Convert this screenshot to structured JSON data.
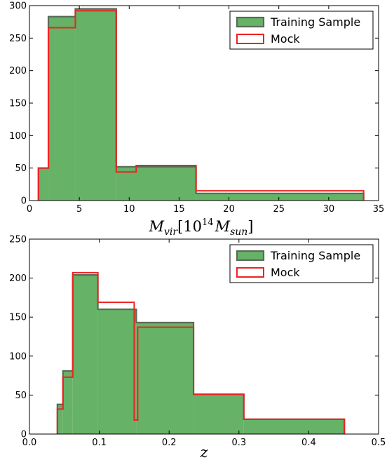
{
  "colors": {
    "training_fill": "#66b266",
    "training_edge": "#5a6a5a",
    "mock_edge": "#ee2222",
    "axes": "#000000"
  },
  "chart_data": [
    {
      "type": "histogram",
      "xlabel_base": "M",
      "xlabel_sub": "vir",
      "xlabel_bracket_open": "[10",
      "xlabel_sup": "14",
      "xlabel_unit": "M",
      "xlabel_unit_sub": "sun",
      "xlabel_bracket_close": "]",
      "xlim": [
        0,
        35
      ],
      "ylim": [
        0,
        300
      ],
      "xticks": [
        0,
        5,
        10,
        15,
        20,
        25,
        30,
        35
      ],
      "yticks": [
        0,
        50,
        100,
        150,
        200,
        250,
        300
      ],
      "legend": {
        "placement": "top-right",
        "entries": [
          "Training Sample",
          "Mock"
        ]
      },
      "series": [
        {
          "name": "Training Sample",
          "style": "filled",
          "edges": [
            0.9,
            1.9,
            4.6,
            8.7,
            16.7,
            33.5
          ],
          "counts": [
            50,
            283,
            295,
            52,
            11
          ]
        },
        {
          "name": "Mock",
          "style": "step",
          "edges": [
            0.9,
            1.9,
            4.6,
            8.7,
            10.7,
            16.7,
            33.5
          ],
          "counts": [
            50,
            266,
            292,
            44,
            54,
            15
          ]
        }
      ]
    },
    {
      "type": "histogram",
      "xlabel": "z",
      "xlim": [
        0.0,
        0.5
      ],
      "ylim": [
        0,
        250
      ],
      "xticks": [
        "0.0",
        "0.1",
        "0.2",
        "0.3",
        "0.4",
        "0.5"
      ],
      "yticks": [
        0,
        50,
        100,
        150,
        200,
        250
      ],
      "legend": {
        "placement": "top-right",
        "entries": [
          "Training Sample",
          "Mock"
        ]
      },
      "series": [
        {
          "name": "Training Sample",
          "style": "filled",
          "edges": [
            0.04,
            0.048,
            0.062,
            0.098,
            0.153,
            0.235,
            0.307,
            0.451
          ],
          "counts": [
            38,
            81,
            204,
            160,
            143,
            51,
            19
          ]
        },
        {
          "name": "Mock",
          "style": "step",
          "edges": [
            0.04,
            0.048,
            0.062,
            0.098,
            0.15,
            0.155,
            0.235,
            0.307,
            0.451
          ],
          "counts": [
            32,
            73,
            207,
            169,
            18,
            137,
            51,
            19
          ]
        }
      ]
    }
  ]
}
